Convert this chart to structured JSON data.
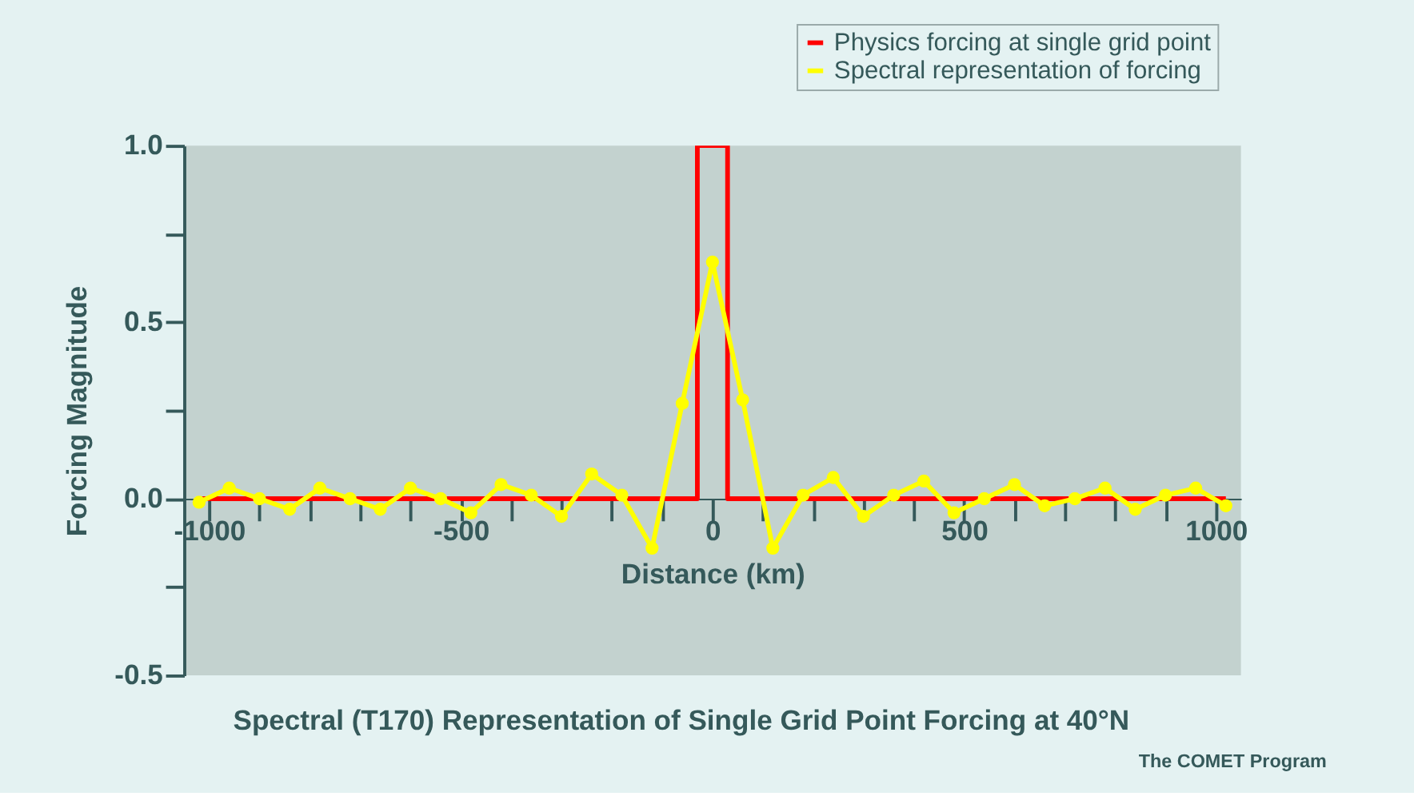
{
  "chart_data": {
    "type": "line",
    "xlabel": "Distance (km)",
    "ylabel": "Forcing Magnitude",
    "title": "Spectral (T170) Representation of Single Grid Point Forcing at 40°N",
    "annotations": [
      "The COMET Program"
    ],
    "series": [
      {
        "name": "Physics forcing at single grid point",
        "color": "#ff0000",
        "marker": "none",
        "x": [
          -1020,
          -30,
          -30,
          30,
          30,
          1020
        ],
        "values": [
          0,
          0,
          1,
          1,
          0,
          0
        ]
      },
      {
        "name": "Spectral representation of forcing",
        "color": "#ffff00",
        "marker": "circle",
        "x": [
          -1020,
          -960,
          -900,
          -840,
          -780,
          -720,
          -660,
          -600,
          -540,
          -480,
          -420,
          -360,
          -300,
          -240,
          -180,
          -120,
          -60,
          0,
          60,
          120,
          180,
          240,
          300,
          360,
          420,
          480,
          540,
          600,
          660,
          720,
          780,
          840,
          900,
          960,
          1020
        ],
        "values": [
          -0.01,
          0.03,
          0,
          -0.03,
          0.03,
          0,
          -0.03,
          0.03,
          0,
          -0.04,
          0.04,
          0.01,
          -0.05,
          0.07,
          0.01,
          -0.14,
          0.27,
          0.67,
          0.28,
          -0.14,
          0.01,
          0.06,
          -0.05,
          0.01,
          0.05,
          -0.04,
          0,
          0.04,
          -0.02,
          0,
          0.03,
          -0.03,
          0.01,
          0.03,
          -0.02
        ]
      }
    ],
    "xlim": [
      -1050,
      1050
    ],
    "xticks": [
      {
        "value": -1000,
        "label": "-1000"
      },
      {
        "value": -900,
        "label": null
      },
      {
        "value": -800,
        "label": null
      },
      {
        "value": -700,
        "label": null
      },
      {
        "value": -600,
        "label": null
      },
      {
        "value": -500,
        "label": "-500"
      },
      {
        "value": -400,
        "label": null
      },
      {
        "value": -300,
        "label": null
      },
      {
        "value": -200,
        "label": null
      },
      {
        "value": -100,
        "label": null
      },
      {
        "value": 0,
        "label": "0"
      },
      {
        "value": 100,
        "label": null
      },
      {
        "value": 200,
        "label": null
      },
      {
        "value": 300,
        "label": null
      },
      {
        "value": 400,
        "label": null
      },
      {
        "value": 500,
        "label": "500"
      },
      {
        "value": 600,
        "label": null
      },
      {
        "value": 700,
        "label": null
      },
      {
        "value": 800,
        "label": null
      },
      {
        "value": 900,
        "label": null
      },
      {
        "value": 1000,
        "label": "1000"
      }
    ],
    "ylim": [
      -0.5,
      1.0
    ],
    "yticks": [
      {
        "value": -0.5,
        "label": "-0.5"
      },
      {
        "value": -0.25,
        "label": null
      },
      {
        "value": 0,
        "label": "0.0"
      },
      {
        "value": 0.25,
        "label": null
      },
      {
        "value": 0.5,
        "label": "0.5"
      },
      {
        "value": 0.75,
        "label": null
      },
      {
        "value": 1.0,
        "label": "1.0"
      }
    ],
    "grid": false,
    "legend": "top right",
    "line_style": "solid"
  }
}
